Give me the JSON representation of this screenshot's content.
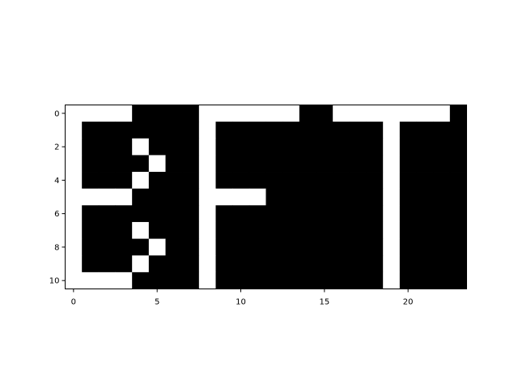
{
  "chart_data": {
    "type": "heatmap",
    "colormap": {
      "0": "#000000",
      "1": "#ffffff"
    },
    "x_ticks": [
      0,
      5,
      10,
      15,
      20
    ],
    "y_ticks": [
      0,
      2,
      4,
      6,
      8,
      10
    ],
    "xlim": [
      -0.5,
      23.5
    ],
    "ylim": [
      10.5,
      -0.5
    ],
    "grid": false,
    "matrix": [
      [
        1,
        1,
        1,
        1,
        0,
        0,
        0,
        0,
        1,
        1,
        1,
        1,
        1,
        1,
        0,
        0,
        1,
        1,
        1,
        1,
        1,
        1,
        1,
        0
      ],
      [
        1,
        0,
        0,
        0,
        0,
        0,
        0,
        0,
        1,
        0,
        0,
        0,
        0,
        0,
        0,
        0,
        0,
        0,
        0,
        1,
        0,
        0,
        0,
        0
      ],
      [
        1,
        0,
        0,
        0,
        1,
        0,
        0,
        0,
        1,
        0,
        0,
        0,
        0,
        0,
        0,
        0,
        0,
        0,
        0,
        1,
        0,
        0,
        0,
        0
      ],
      [
        1,
        0,
        0,
        0,
        0,
        1,
        0,
        0,
        1,
        0,
        0,
        0,
        0,
        0,
        0,
        0,
        0,
        0,
        0,
        1,
        0,
        0,
        0,
        0
      ],
      [
        1,
        0,
        0,
        0,
        1,
        0,
        0,
        0,
        1,
        0,
        0,
        0,
        0,
        0,
        0,
        0,
        0,
        0,
        0,
        1,
        0,
        0,
        0,
        0
      ],
      [
        1,
        1,
        1,
        1,
        0,
        0,
        0,
        0,
        1,
        1,
        1,
        1,
        0,
        0,
        0,
        0,
        0,
        0,
        0,
        1,
        0,
        0,
        0,
        0
      ],
      [
        1,
        0,
        0,
        0,
        0,
        0,
        0,
        0,
        1,
        0,
        0,
        0,
        0,
        0,
        0,
        0,
        0,
        0,
        0,
        1,
        0,
        0,
        0,
        0
      ],
      [
        1,
        0,
        0,
        0,
        1,
        0,
        0,
        0,
        1,
        0,
        0,
        0,
        0,
        0,
        0,
        0,
        0,
        0,
        0,
        1,
        0,
        0,
        0,
        0
      ],
      [
        1,
        0,
        0,
        0,
        0,
        1,
        0,
        0,
        1,
        0,
        0,
        0,
        0,
        0,
        0,
        0,
        0,
        0,
        0,
        1,
        0,
        0,
        0,
        0
      ],
      [
        1,
        0,
        0,
        0,
        1,
        0,
        0,
        0,
        1,
        0,
        0,
        0,
        0,
        0,
        0,
        0,
        0,
        0,
        0,
        1,
        0,
        0,
        0,
        0
      ],
      [
        1,
        1,
        1,
        1,
        0,
        0,
        0,
        0,
        1,
        0,
        0,
        0,
        0,
        0,
        0,
        0,
        0,
        0,
        0,
        1,
        0,
        0,
        0,
        0
      ]
    ]
  }
}
